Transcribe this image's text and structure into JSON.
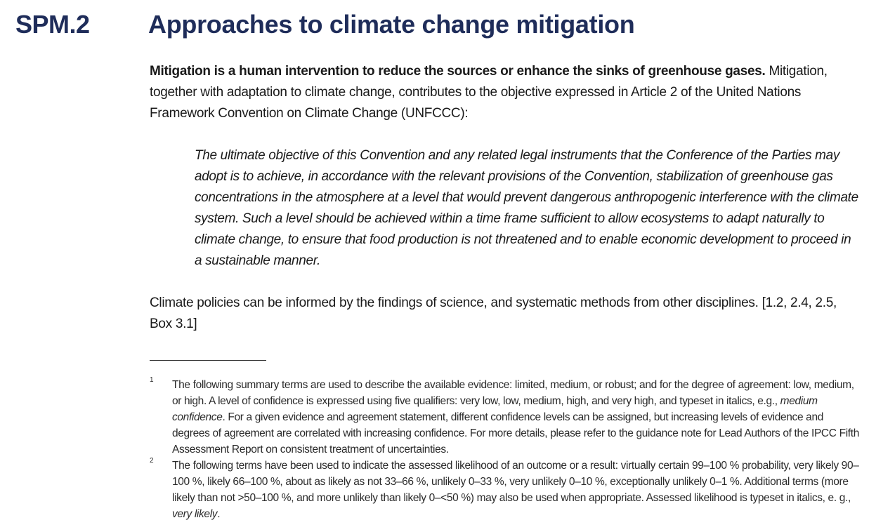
{
  "section": {
    "number": "SPM.2",
    "title": "Approaches to climate change mitigation"
  },
  "intro": {
    "bold_lead": "Mitigation is a human intervention to reduce the sources or enhance the sinks of greenhouse gases.",
    "rest": " Mitiga­tion, together with adaptation to climate change, contributes to the objective expressed in Article 2 of the United Nations Framework Convention on Climate Change (UNFCCC):"
  },
  "quote": "The ultimate objective of this Convention and any related legal instruments that the Conference of the Parties may adopt is to achieve, in accordance with the relevant provisions of the Convention, stabilization of greenhouse gas concentrations in the atmosphere at a level that would prevent dangerous anthropogenic interference with the climate system. Such a level should be achieved within a time frame sufficient to allow ecosystems to adapt natu­rally to climate change, to ensure that food production is not threatened and to enable economic development to proceed in a sustainable manner.",
  "policy": "Climate policies can be informed by the findings of science, and systematic methods from other disciplines. [1.2, 2.4, 2.5, Box 3.1]",
  "footnotes": [
    {
      "mark": "1",
      "part1": "The following summary terms are used to describe the available evidence: limited, medium, or robust; and for the degree of agreement: low, medium, or high. A level of confidence is expressed using five qualifiers: very low, low, medium, high, and very high, and typeset in italics, e.g., ",
      "italic": "medium confidence",
      "part2": ". For a given evidence and agreement statement, different confidence levels can be assigned, but increasing levels of evidence and degrees of agreement are correlated with increasing confidence. For more details, please refer to the guidance note for Lead Authors of the IPCC Fifth Assessment Report on consistent treatment of uncertainties."
    },
    {
      "mark": "2",
      "part1": "The following terms have been used to indicate the assessed likelihood of an outcome or a result: virtually certain 99–100 % probability, very likely 90–100 %, likely 66–100 %, about as likely as not 33–66 %, unlikely 0–33 %, very unlikely 0–10 %, exceptionally unlikely 0–1 %. Addi­tional terms (more likely than not >50–100 %, and more unlikely than likely 0–<50 %) may also be used when appropriate. Assessed likelihood is typeset in italics, e. g., ",
      "italic": "very likely",
      "part2": "."
    }
  ]
}
